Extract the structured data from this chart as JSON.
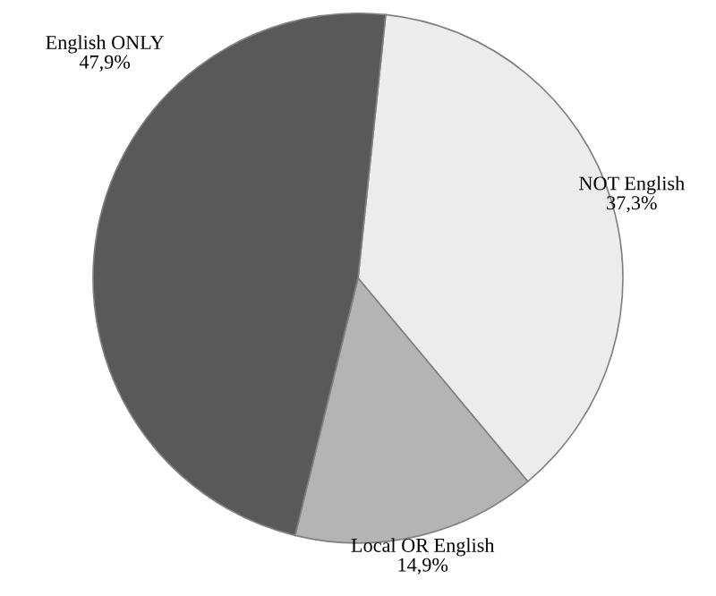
{
  "chart_data": {
    "type": "pie",
    "categories": [
      "NOT English",
      "Local OR English",
      "English ONLY"
    ],
    "values": [
      37.3,
      14.9,
      47.9
    ],
    "value_labels": [
      "37,3%",
      "14,9%",
      "47,9%"
    ],
    "colors": [
      "#ececec",
      "#b4b4b4",
      "#595959"
    ],
    "legend": false
  }
}
